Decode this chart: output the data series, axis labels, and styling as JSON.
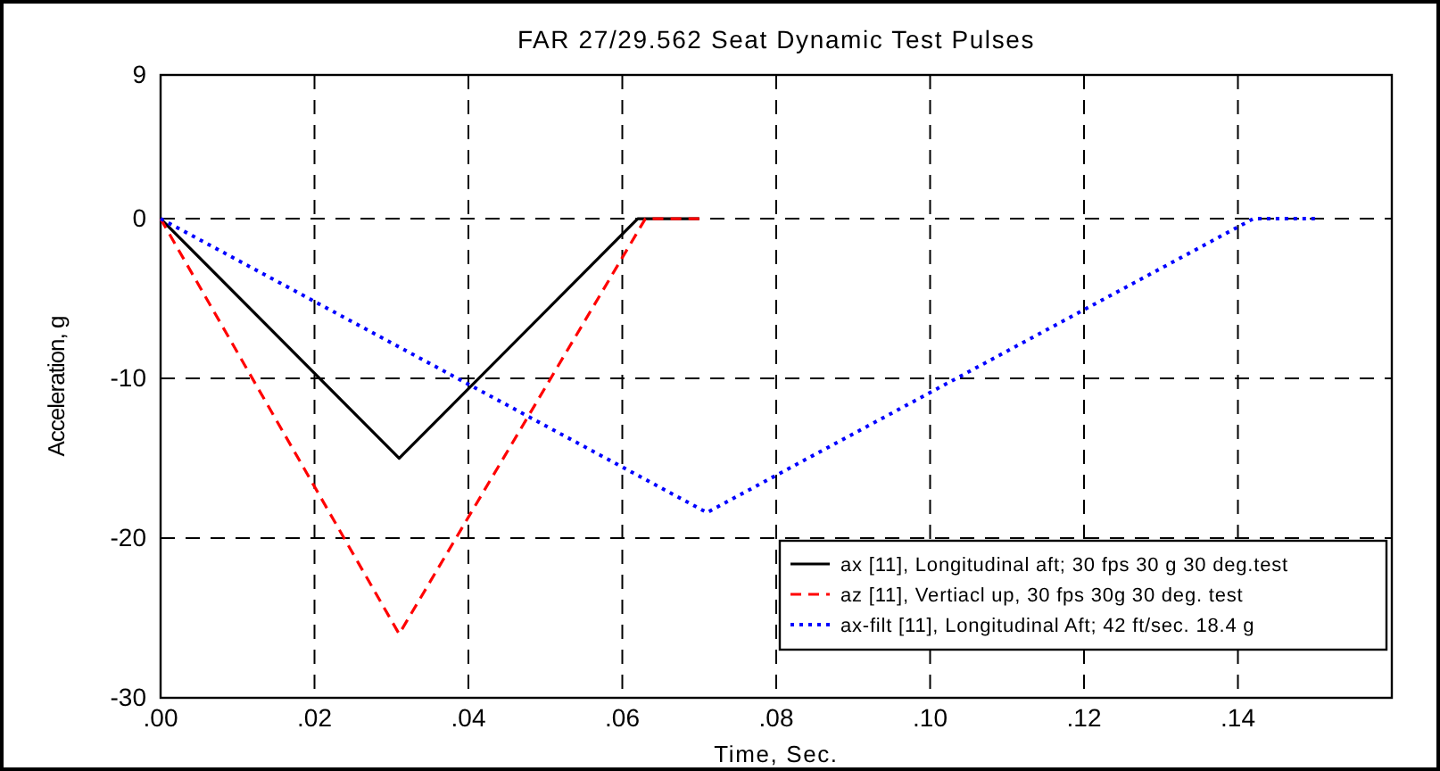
{
  "chart_data": {
    "type": "line",
    "title": "FAR 27/29.562 Seat Dynamic Test Pulses",
    "xlabel": "Time, Sec.",
    "ylabel": "Acceleration, g",
    "xlim": [
      0,
      0.16
    ],
    "xticks": [
      {
        "value": 0,
        "label": ".00"
      },
      {
        "value": 0.02,
        "label": ".02"
      },
      {
        "value": 0.04,
        "label": ".04"
      },
      {
        "value": 0.06,
        "label": ".06"
      },
      {
        "value": 0.08,
        "label": ".08"
      },
      {
        "value": 0.1,
        "label": ".10"
      },
      {
        "value": 0.12,
        "label": ".12"
      },
      {
        "value": 0.14,
        "label": ".14"
      }
    ],
    "ylim": [
      -30,
      9
    ],
    "yticks": [
      -30,
      -20,
      -10,
      0,
      9
    ],
    "grid": true,
    "legend": "bottom right",
    "marker": "none",
    "series": [
      {
        "name": "ax [11], Longitudinal aft; 30 fps 30 g 30 deg.test",
        "color": "#000000",
        "line_style": "solid",
        "x": [
          0,
          0.031,
          0.062,
          0.07
        ],
        "values": [
          0,
          -15,
          0,
          0
        ]
      },
      {
        "name": "az [11], Vertiacl up, 30 fps 30g 30 deg. test",
        "color": "#ff0000",
        "line_style": "dashed",
        "x": [
          0,
          0.031,
          0.063,
          0.07
        ],
        "values": [
          0,
          -26,
          0,
          0
        ]
      },
      {
        "name": "ax-filt [11], Longitudinal Aft; 42 ft/sec. 18.4 g",
        "color": "#0000ff",
        "line_style": "dotted",
        "x": [
          0,
          0.071,
          0.142,
          0.15
        ],
        "values": [
          0,
          -18.4,
          0,
          0
        ]
      }
    ]
  }
}
